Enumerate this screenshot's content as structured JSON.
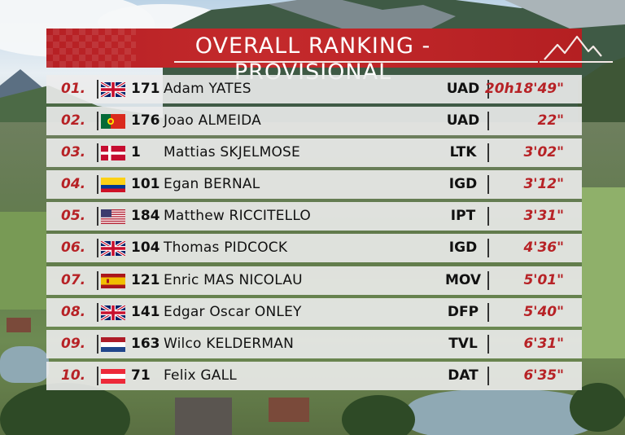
{
  "header": {
    "title": "OVERALL RANKING - PROVISIONAL"
  },
  "colors": {
    "accent": "#b72226",
    "row_bg": "#ececec",
    "text": "#111111"
  },
  "rows": [
    {
      "position": "01.",
      "flag": "gb",
      "bib": "171",
      "rider": "Adam YATES",
      "team": "UAD",
      "time": "20h18'49\""
    },
    {
      "position": "02.",
      "flag": "pt",
      "bib": "176",
      "rider": "Joao ALMEIDA",
      "team": "UAD",
      "time": "22\""
    },
    {
      "position": "03.",
      "flag": "dk",
      "bib": "1",
      "rider": "Mattias SKJELMOSE",
      "team": "LTK",
      "time": "3'02\""
    },
    {
      "position": "04.",
      "flag": "co",
      "bib": "101",
      "rider": "Egan BERNAL",
      "team": "IGD",
      "time": "3'12\""
    },
    {
      "position": "05.",
      "flag": "us",
      "bib": "184",
      "rider": "Matthew RICCITELLO",
      "team": "IPT",
      "time": "3'31\""
    },
    {
      "position": "06.",
      "flag": "gb",
      "bib": "104",
      "rider": "Thomas PIDCOCK",
      "team": "IGD",
      "time": "4'36\""
    },
    {
      "position": "07.",
      "flag": "es",
      "bib": "121",
      "rider": "Enric MAS NICOLAU",
      "team": "MOV",
      "time": "5'01\""
    },
    {
      "position": "08.",
      "flag": "gb",
      "bib": "141",
      "rider": "Edgar Oscar ONLEY",
      "team": "DFP",
      "time": "5'40\""
    },
    {
      "position": "09.",
      "flag": "nl",
      "bib": "163",
      "rider": "Wilco KELDERMAN",
      "team": "TVL",
      "time": "6'31\""
    },
    {
      "position": "10.",
      "flag": "at",
      "bib": "71",
      "rider": "Felix GALL",
      "team": "DAT",
      "time": "6'35\""
    }
  ]
}
